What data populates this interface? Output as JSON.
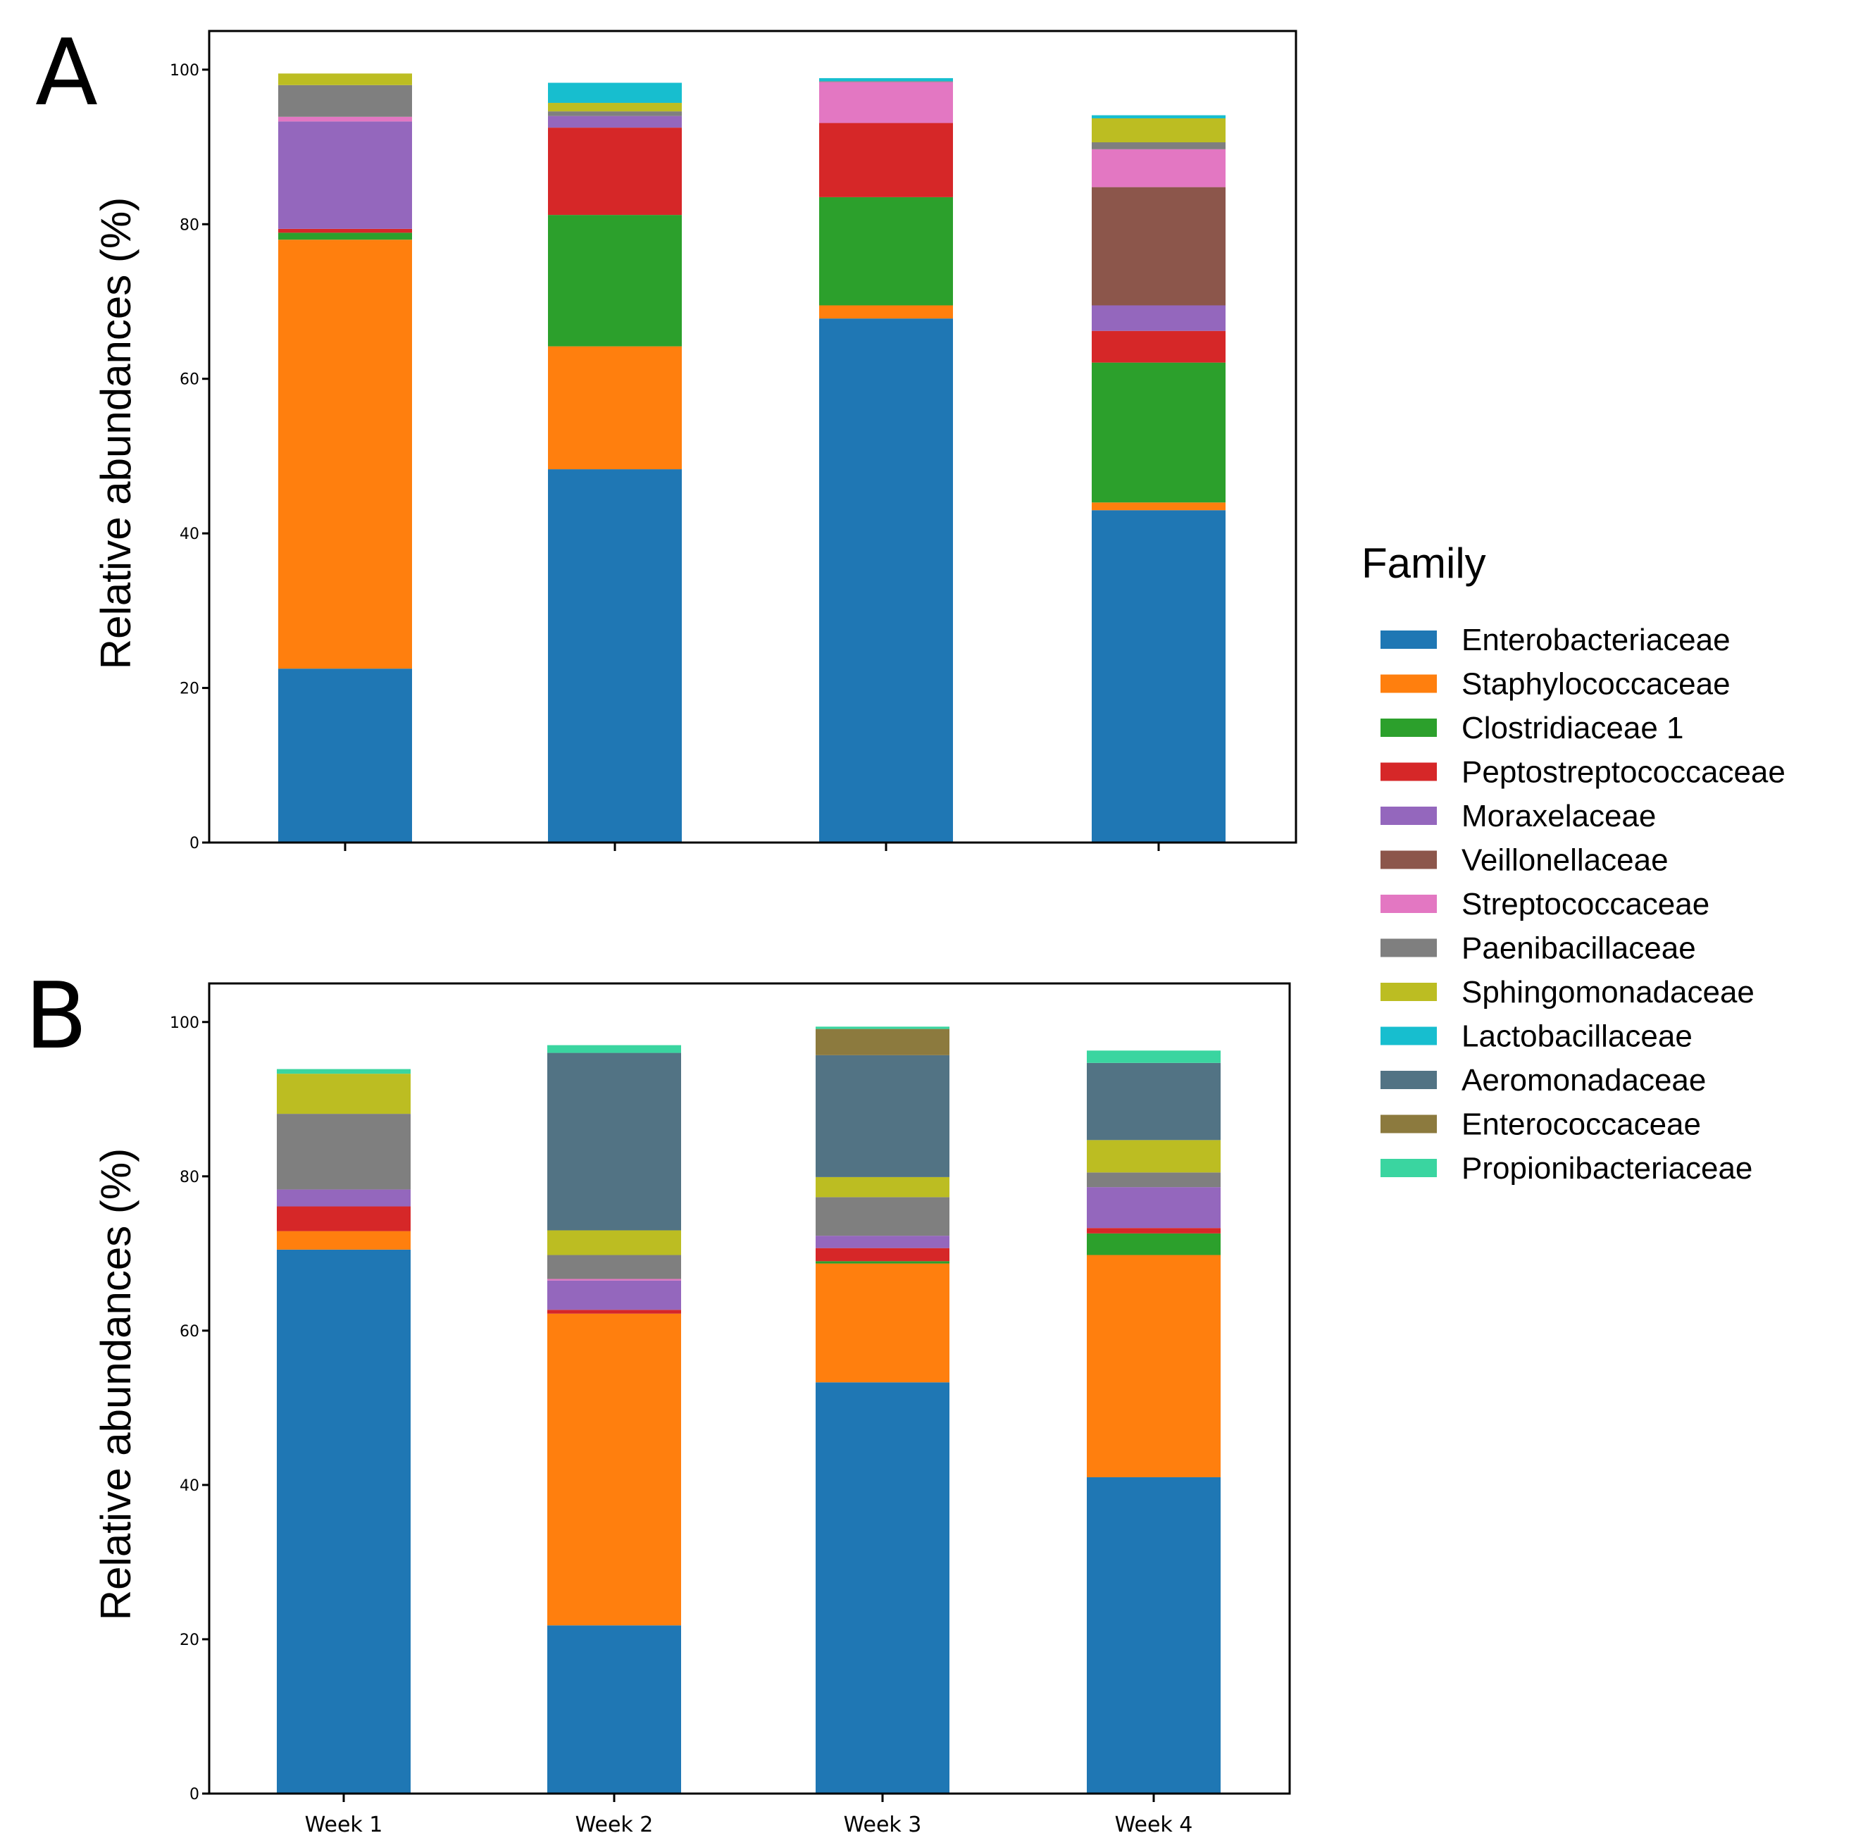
{
  "chart_data": [
    {
      "panel": "A",
      "type": "bar",
      "stacked": true,
      "ylabel": "Relative abundances (%)",
      "xlabel": "",
      "ylim": [
        0,
        105
      ],
      "yticks": [
        "0",
        "20",
        "40",
        "60",
        "80",
        "100"
      ],
      "categories": [
        "Week 1",
        "Week 2",
        "Week 3",
        "Week 4"
      ],
      "show_category_labels": false,
      "series": [
        {
          "name": "Enterobacteriaceae",
          "values": [
            22.5,
            48.3,
            67.8,
            43.0
          ]
        },
        {
          "name": "Staphylococcaceae",
          "values": [
            55.5,
            15.9,
            1.7,
            1.0
          ]
        },
        {
          "name": "Clostridiaceae 1",
          "values": [
            0.9,
            17.0,
            14.0,
            18.1
          ]
        },
        {
          "name": "Peptostreptococcaceae",
          "values": [
            0.5,
            11.3,
            9.6,
            4.1
          ]
        },
        {
          "name": "Moraxelaceae",
          "values": [
            13.9,
            1.5,
            0.0,
            3.3
          ]
        },
        {
          "name": "Veillonellaceae",
          "values": [
            0.0,
            0.0,
            0.0,
            15.3
          ]
        },
        {
          "name": "Streptococcaceae",
          "values": [
            0.6,
            0.0,
            5.3,
            4.9
          ]
        },
        {
          "name": "Paenibacillaceae",
          "values": [
            4.1,
            0.6,
            0.1,
            0.9
          ]
        },
        {
          "name": "Sphingomonadaceae",
          "values": [
            1.5,
            1.1,
            0.0,
            3.1
          ]
        },
        {
          "name": "Lactobacillaceae",
          "values": [
            0.0,
            2.6,
            0.4,
            0.4
          ]
        },
        {
          "name": "Aeromonadaceae",
          "values": [
            0.0,
            0.0,
            0.0,
            0.0
          ]
        },
        {
          "name": "Enterococcaceae",
          "values": [
            0.0,
            0.0,
            0.0,
            0.0
          ]
        },
        {
          "name": "Propionibacteriaceae",
          "values": [
            0.0,
            0.0,
            0.0,
            0.0
          ]
        }
      ]
    },
    {
      "panel": "B",
      "type": "bar",
      "stacked": true,
      "ylabel": "Relative abundances (%)",
      "xlabel": "",
      "ylim": [
        0,
        105
      ],
      "yticks": [
        "0",
        "20",
        "40",
        "60",
        "80",
        "100"
      ],
      "categories": [
        "Week 1",
        "Week 2",
        "Week 3",
        "Week 4"
      ],
      "show_category_labels": true,
      "series": [
        {
          "name": "Enterobacteriaceae",
          "values": [
            70.5,
            21.8,
            53.3,
            41.0
          ]
        },
        {
          "name": "Staphylococcaceae",
          "values": [
            2.4,
            40.4,
            15.4,
            28.8
          ]
        },
        {
          "name": "Clostridiaceae 1",
          "values": [
            0.0,
            0.0,
            0.3,
            2.8
          ]
        },
        {
          "name": "Peptostreptococcaceae",
          "values": [
            3.2,
            0.5,
            1.7,
            0.7
          ]
        },
        {
          "name": "Moraxelaceae",
          "values": [
            2.2,
            3.8,
            1.6,
            5.3
          ]
        },
        {
          "name": "Veillonellaceae",
          "values": [
            0.0,
            0.0,
            0.0,
            0.0
          ]
        },
        {
          "name": "Streptococcaceae",
          "values": [
            0.0,
            0.2,
            0.0,
            0.0
          ]
        },
        {
          "name": "Paenibacillaceae",
          "values": [
            9.8,
            3.1,
            5.0,
            1.9
          ]
        },
        {
          "name": "Sphingomonadaceae",
          "values": [
            5.2,
            3.2,
            2.6,
            4.2
          ]
        },
        {
          "name": "Lactobacillaceae",
          "values": [
            0.0,
            0.0,
            0.0,
            0.0
          ]
        },
        {
          "name": "Aeromonadaceae",
          "values": [
            0.0,
            23.0,
            15.8,
            10.0
          ]
        },
        {
          "name": "Enterococcaceae",
          "values": [
            0.0,
            0.0,
            3.4,
            0.0
          ]
        },
        {
          "name": "Propionibacteriaceae",
          "values": [
            0.6,
            1.0,
            0.3,
            1.6
          ]
        }
      ]
    }
  ],
  "legend": {
    "title": "Family",
    "entries": [
      {
        "name": "Enterobacteriaceae",
        "color": "#1f77b4"
      },
      {
        "name": "Staphylococcaceae",
        "color": "#ff7f0e"
      },
      {
        "name": "Clostridiaceae 1",
        "color": "#2ca02c"
      },
      {
        "name": "Peptostreptococcaceae",
        "color": "#d62728"
      },
      {
        "name": "Moraxelaceae",
        "color": "#9467bd"
      },
      {
        "name": "Veillonellaceae",
        "color": "#8c564b"
      },
      {
        "name": "Streptococcaceae",
        "color": "#e377c2"
      },
      {
        "name": "Paenibacillaceae",
        "color": "#7f7f7f"
      },
      {
        "name": "Sphingomonadaceae",
        "color": "#bcbd22"
      },
      {
        "name": "Lactobacillaceae",
        "color": "#17becf"
      },
      {
        "name": "Aeromonadaceae",
        "color": "#527384"
      },
      {
        "name": "Enterococcaceae",
        "color": "#8c7a3e"
      },
      {
        "name": "Propionibacteriaceae",
        "color": "#3ad5a0"
      }
    ]
  }
}
